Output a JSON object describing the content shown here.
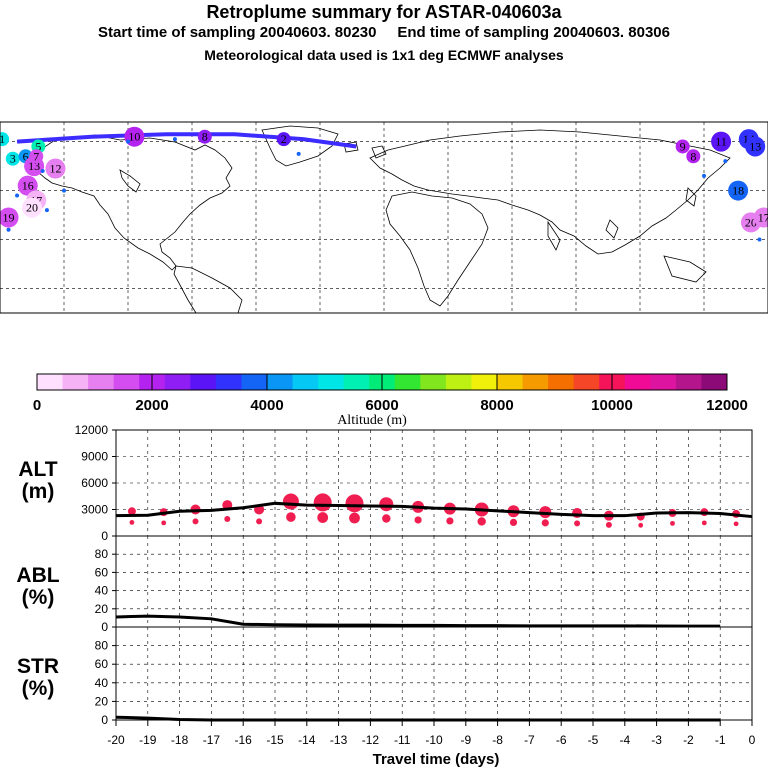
{
  "header": {
    "title": "Retroplume summary for ASTAR-040603a",
    "start_label": "Start time of sampling 20040603. 80230",
    "end_label": "End time of sampling 20040603. 80306",
    "met_label": "Meteorological data used is 1x1 deg ECMWF analyses"
  },
  "map": {
    "description_marks": "plume centroid circles labelled by day, colored by altitude",
    "track_color": "#3c2cff",
    "labels": [
      {
        "text": "1",
        "lon": -179,
        "lat": 81,
        "alt": 5000
      },
      {
        "text": "10",
        "lon": -117,
        "lat": 82,
        "alt": 2200
      },
      {
        "text": "8",
        "lon": -84,
        "lat": 82,
        "alt": 2500
      },
      {
        "text": "2",
        "lon": -47,
        "lat": 81,
        "alt": 2800
      },
      {
        "text": "3",
        "lon": -174,
        "lat": 73,
        "alt": 5200
      },
      {
        "text": "6",
        "lon": -168,
        "lat": 74,
        "alt": 4400
      },
      {
        "text": "5",
        "lon": -162,
        "lat": 78,
        "alt": 5600
      },
      {
        "text": "13",
        "lon": -164,
        "lat": 70,
        "alt": 1600
      },
      {
        "text": "7",
        "lon": -163,
        "lat": 74,
        "alt": 1600
      },
      {
        "text": "12",
        "lon": -154,
        "lat": 69,
        "alt": 1200
      },
      {
        "text": "16",
        "lon": -167,
        "lat": 62,
        "alt": 1400
      },
      {
        "text": "17",
        "lon": -163,
        "lat": 56,
        "alt": 800
      },
      {
        "text": "20",
        "lon": -165,
        "lat": 53,
        "alt": 400
      },
      {
        "text": "19",
        "lon": -176,
        "lat": 49,
        "alt": 1600
      },
      {
        "text": "9",
        "lon": 140,
        "lat": 78,
        "alt": 2000
      },
      {
        "text": "8",
        "lon": 145,
        "lat": 74,
        "alt": 2200
      },
      {
        "text": "11",
        "lon": 158,
        "lat": 80,
        "alt": 3100
      },
      {
        "text": "14",
        "lon": 171,
        "lat": 81,
        "alt": 3500
      },
      {
        "text": "13",
        "lon": 174,
        "lat": 78,
        "alt": 3200
      },
      {
        "text": "18",
        "lon": 166,
        "lat": 60,
        "alt": 3800
      },
      {
        "text": "20",
        "lon": 172,
        "lat": 47,
        "alt": 1200
      },
      {
        "text": "17",
        "lon": 178,
        "lat": 49,
        "alt": 1000
      }
    ],
    "track": [
      {
        "lon": -172,
        "lat": 80
      },
      {
        "lon": -137,
        "lat": 82
      },
      {
        "lon": -102,
        "lat": 83
      },
      {
        "lon": -70,
        "lat": 83
      },
      {
        "lon": -38,
        "lat": 81
      },
      {
        "lon": -13,
        "lat": 78
      }
    ]
  },
  "colorbar": {
    "tick_labels": [
      "0",
      "2000",
      "4000",
      "6000",
      "8000",
      "10000",
      "12000"
    ],
    "title": "Altitude (m)",
    "colors": [
      "#ffe0ff",
      "#f5b3f5",
      "#e680f0",
      "#d44df0",
      "#b422f0",
      "#8f1ef5",
      "#5a14f5",
      "#3232ff",
      "#1464f5",
      "#0a96f5",
      "#05c8f5",
      "#00e6e6",
      "#00f0b4",
      "#00eb78",
      "#32e632",
      "#82e61e",
      "#bef014",
      "#f0f00a",
      "#f5c800",
      "#f59b00",
      "#f56e00",
      "#f54628",
      "#f5145a",
      "#f00a96",
      "#dc14a0",
      "#b4148c",
      "#8c0a78"
    ]
  },
  "x_axis": {
    "tick_labels": [
      "-20",
      "-19",
      "-18",
      "-17",
      "-16",
      "-15",
      "-14",
      "-13",
      "-12",
      "-11",
      "-10",
      "-9",
      "-8",
      "-7",
      "-6",
      "-5",
      "-4",
      "-3",
      "-2",
      "-1",
      "0"
    ],
    "label": "Travel time (days)"
  },
  "chart_data": [
    {
      "type": "line",
      "name": "ALT",
      "title": "ALT (m)",
      "title_line1": "ALT",
      "title_line2": "(m)",
      "ylim": [
        0,
        12000
      ],
      "y_ticks": [
        "0",
        "3000",
        "6000",
        "9000",
        "12000"
      ],
      "x": [
        -20,
        -19,
        -18,
        -17,
        -16,
        -15,
        -14,
        -13,
        -12,
        -11,
        -10,
        -9,
        -8,
        -7,
        -6,
        -5,
        -4,
        -3,
        -2,
        -1,
        0
      ],
      "values": [
        2300,
        2350,
        2800,
        2900,
        3200,
        3700,
        3500,
        3450,
        3400,
        3350,
        3150,
        3050,
        2850,
        2650,
        2450,
        2300,
        2300,
        2600,
        2650,
        2550,
        2200
      ],
      "marker_alt": [
        2800,
        2700,
        3000,
        3500,
        3000,
        3900,
        3800,
        3700,
        3600,
        3300,
        3100,
        3000,
        2800,
        2700,
        2600,
        2300,
        2200,
        2600,
        2700,
        2500
      ],
      "marker_size": [
        4,
        4,
        5,
        5,
        5,
        8,
        9,
        9,
        7,
        6,
        6,
        7,
        6,
        6,
        5,
        5,
        4,
        4,
        4,
        4
      ]
    },
    {
      "type": "line",
      "name": "ABL",
      "title": "ABL (%)",
      "title_line1": "ABL",
      "title_line2": "(%)",
      "ylim": [
        0,
        100
      ],
      "y_ticks": [
        "0",
        "20",
        "40",
        "60",
        "80"
      ],
      "x": [
        -20,
        -19,
        -18,
        -17,
        -16,
        -15,
        -14,
        -13,
        -12,
        -11,
        -10,
        -9,
        -8,
        -7,
        -6,
        -5,
        -4,
        -3,
        -2,
        -1
      ],
      "values": [
        11,
        12,
        11,
        9,
        3,
        2.5,
        2.2,
        2,
        2,
        1.8,
        1.8,
        1.5,
        1.5,
        1.3,
        1.2,
        1.2,
        1.2,
        1.1,
        1,
        1
      ]
    },
    {
      "type": "line",
      "name": "STR",
      "title": "STR (%)",
      "title_line1": "STR",
      "title_line2": "(%)",
      "ylim": [
        0,
        100
      ],
      "y_ticks": [
        "0",
        "20",
        "40",
        "60",
        "80"
      ],
      "x": [
        -20,
        -19,
        -18,
        -17,
        -16,
        -15,
        -14,
        -13,
        -12,
        -11,
        -10,
        -9,
        -8,
        -7,
        -6,
        -5,
        -4,
        -3,
        -2,
        -1
      ],
      "values": [
        3,
        2,
        0.5,
        0,
        0,
        0,
        0,
        0,
        0,
        0,
        0,
        0,
        0,
        0,
        0,
        0,
        0,
        0,
        0,
        0
      ]
    }
  ]
}
